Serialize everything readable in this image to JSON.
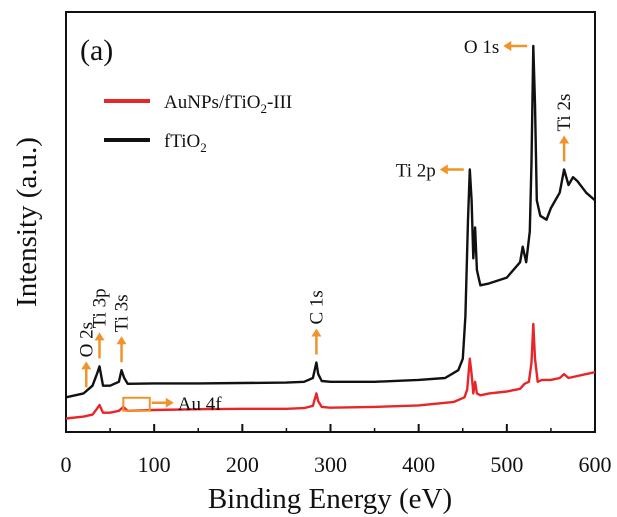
{
  "chart_data": {
    "type": "line",
    "panel_label": "(a)",
    "xlabel": "Binding Energy (eV)",
    "ylabel": "Intensity (a.u.)",
    "xlim": [
      0,
      600
    ],
    "ylim": [
      0,
      100
    ],
    "xticks": [
      0,
      100,
      200,
      300,
      400,
      500,
      600
    ],
    "yticks_shown": false,
    "grid": false,
    "legend_position": "top-left",
    "series": [
      {
        "name_main": "AuNPs/fTiO",
        "name_sub": "2",
        "name_tail": "-III",
        "color": "#e8262a",
        "x": [
          0,
          20,
          30,
          35,
          38,
          42,
          50,
          60,
          65,
          70,
          100,
          150,
          200,
          250,
          270,
          280,
          284,
          286,
          290,
          300,
          350,
          400,
          440,
          452,
          455,
          458,
          460,
          462,
          464,
          466,
          470,
          480,
          500,
          515,
          520,
          525,
          528,
          530,
          532,
          535,
          540,
          550,
          560,
          565,
          570,
          580,
          590,
          600
        ],
        "y": [
          3.5,
          4.0,
          4.5,
          6.0,
          7.0,
          5.0,
          5.0,
          5.5,
          6.5,
          5.5,
          5.7,
          5.9,
          6.0,
          6.0,
          6.2,
          6.8,
          10.0,
          8.0,
          6.5,
          6.3,
          6.5,
          6.9,
          7.8,
          9.0,
          11.0,
          19.0,
          15.0,
          10.0,
          13.0,
          10.0,
          9.5,
          10.0,
          10.5,
          11.2,
          12.5,
          13.0,
          18.0,
          28.0,
          19.0,
          13.0,
          13.5,
          13.5,
          14.0,
          15.0,
          14.0,
          14.5,
          15.0,
          15.5
        ]
      },
      {
        "name_main": "fTiO",
        "name_sub": "2",
        "name_tail": "",
        "color": "#111111",
        "x": [
          0,
          20,
          30,
          35,
          38,
          42,
          50,
          60,
          63,
          66,
          70,
          100,
          150,
          200,
          250,
          270,
          280,
          284,
          286,
          290,
          300,
          350,
          400,
          430,
          445,
          450,
          453,
          456,
          458,
          460,
          462,
          464,
          466,
          468,
          470,
          480,
          500,
          515,
          518,
          522,
          526,
          528,
          530,
          532,
          534,
          538,
          545,
          550,
          555,
          560,
          565,
          570,
          575,
          580,
          590,
          600
        ],
        "y": [
          9.0,
          10.0,
          12.0,
          15.0,
          17.0,
          12.0,
          12.0,
          13.0,
          16.0,
          14.0,
          12.5,
          12.6,
          12.6,
          12.7,
          12.8,
          13.0,
          14.0,
          18.0,
          15.0,
          13.2,
          13.0,
          13.0,
          13.5,
          14.0,
          16.0,
          19.0,
          30.0,
          55.0,
          68.0,
          60.0,
          45.0,
          53.0,
          42.0,
          40.0,
          38.0,
          38.5,
          40.0,
          44.0,
          48.0,
          44.0,
          52.0,
          70.0,
          100.0,
          85.0,
          60.0,
          56.0,
          55.0,
          58.0,
          60.0,
          62.0,
          68.0,
          64.0,
          66.0,
          65.0,
          62.0,
          60.0
        ]
      }
    ],
    "annotations": [
      {
        "label": "O 2s",
        "x": 23,
        "y": 9.5,
        "arrow": "up",
        "orientation": "vertical"
      },
      {
        "label": "Ti 3p",
        "x": 38,
        "y": 17,
        "arrow": "up",
        "orientation": "vertical"
      },
      {
        "label": "Ti 3s",
        "x": 63,
        "y": 16,
        "arrow": "up",
        "orientation": "vertical"
      },
      {
        "label": "C 1s",
        "x": 284,
        "y": 18,
        "arrow": "up",
        "orientation": "vertical"
      },
      {
        "label": "Ti 2p",
        "x": 458,
        "y": 68,
        "arrow": "left",
        "orientation": "horizontal"
      },
      {
        "label": "O 1s",
        "x": 530,
        "y": 100,
        "arrow": "left",
        "orientation": "horizontal"
      },
      {
        "label": "Ti 2s",
        "x": 565,
        "y": 68,
        "arrow": "up",
        "orientation": "vertical"
      },
      {
        "label": "Au 4f",
        "x": 83,
        "y": 5.5,
        "arrow": "right",
        "orientation": "box",
        "box_x": [
          65,
          95
        ]
      }
    ],
    "colors": {
      "annotation": "#f0932b",
      "axis": "#111111"
    }
  }
}
